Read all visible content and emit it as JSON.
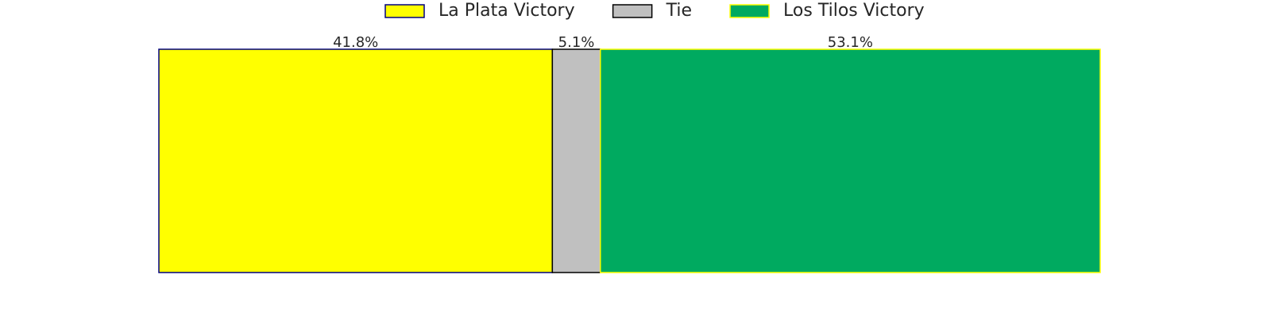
{
  "chart_data": {
    "type": "bar",
    "orientation": "horizontal",
    "stacked": true,
    "series": [
      {
        "name": "La Plata Victory",
        "color": "#ffff00",
        "edgecolor": "#000080",
        "values": [
          41.8
        ],
        "value_labels": [
          "41.8%"
        ]
      },
      {
        "name": "Tie",
        "color": "#c0c0c0",
        "edgecolor": "#000000",
        "values": [
          5.1
        ],
        "value_labels": [
          "5.1%"
        ]
      },
      {
        "name": "Los Tilos Victory",
        "color": "#00aa60",
        "edgecolor": "#ffff00",
        "values": [
          53.1
        ],
        "value_labels": [
          "53.1%"
        ]
      }
    ],
    "legend": "top"
  }
}
